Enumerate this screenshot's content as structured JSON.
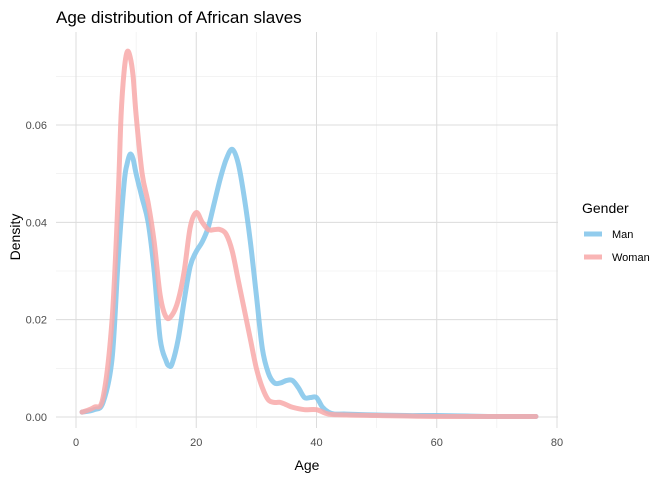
{
  "chart_data": {
    "type": "line",
    "title": "Age distribution of African slaves",
    "xlabel": "Age",
    "ylabel": "Density",
    "xlim": [
      0,
      80
    ],
    "ylim": [
      0,
      0.077
    ],
    "x_ticks": [
      0,
      20,
      40,
      60,
      80
    ],
    "y_ticks": [
      0.0,
      0.02,
      0.04,
      0.06
    ],
    "x_tick_labels": [
      "0",
      "20",
      "40",
      "60",
      "80"
    ],
    "y_tick_labels": [
      "0.00",
      "0.02",
      "0.04",
      "0.06"
    ],
    "grid": true,
    "legend": {
      "title": "Gender",
      "position": "right"
    },
    "series": [
      {
        "name": "Man",
        "color": "#80C4EA",
        "x": [
          1,
          3,
          4.5,
          6,
          7,
          8,
          8.5,
          9,
          9.5,
          10,
          11,
          12,
          13,
          14,
          15,
          15.5,
          16,
          17,
          18,
          19,
          20,
          21,
          22,
          23,
          24,
          25,
          26,
          27,
          28,
          29,
          30,
          31,
          32,
          33,
          34,
          35,
          36,
          37,
          38,
          39,
          40,
          41,
          42,
          43,
          45,
          50,
          55,
          60,
          65,
          70,
          76.5
        ],
        "y": [
          0.001,
          0.0015,
          0.003,
          0.012,
          0.032,
          0.048,
          0.052,
          0.054,
          0.053,
          0.05,
          0.045,
          0.04,
          0.03,
          0.016,
          0.0115,
          0.0105,
          0.011,
          0.016,
          0.024,
          0.031,
          0.034,
          0.036,
          0.039,
          0.044,
          0.049,
          0.053,
          0.055,
          0.052,
          0.045,
          0.036,
          0.025,
          0.014,
          0.009,
          0.007,
          0.007,
          0.0075,
          0.0075,
          0.006,
          0.004,
          0.004,
          0.004,
          0.002,
          0.001,
          0.0006,
          0.0006,
          0.0004,
          0.0003,
          0.0003,
          0.0002,
          0.0001,
          0.0001
        ]
      },
      {
        "name": "Woman",
        "color": "#F8A9A9",
        "x": [
          1,
          3,
          4.5,
          6,
          7,
          7.5,
          8,
          8.5,
          9,
          9.5,
          10,
          11,
          12,
          13,
          14,
          15,
          16,
          17,
          18,
          19,
          20,
          21,
          22,
          23,
          24,
          25,
          26,
          27,
          28,
          29,
          30,
          31,
          32,
          33,
          34,
          35,
          36,
          38,
          40,
          42,
          45,
          50,
          55,
          60,
          65,
          70,
          76.5
        ],
        "y": [
          0.001,
          0.002,
          0.004,
          0.02,
          0.045,
          0.062,
          0.071,
          0.075,
          0.074,
          0.07,
          0.062,
          0.05,
          0.044,
          0.036,
          0.025,
          0.0205,
          0.021,
          0.024,
          0.03,
          0.039,
          0.042,
          0.04,
          0.0385,
          0.0385,
          0.0385,
          0.0375,
          0.034,
          0.028,
          0.022,
          0.016,
          0.01,
          0.006,
          0.0035,
          0.003,
          0.003,
          0.0025,
          0.002,
          0.0015,
          0.0015,
          0.0006,
          0.0004,
          0.0003,
          0.0002,
          0.0001,
          0.0001,
          0.0001,
          0.0001
        ]
      }
    ]
  }
}
